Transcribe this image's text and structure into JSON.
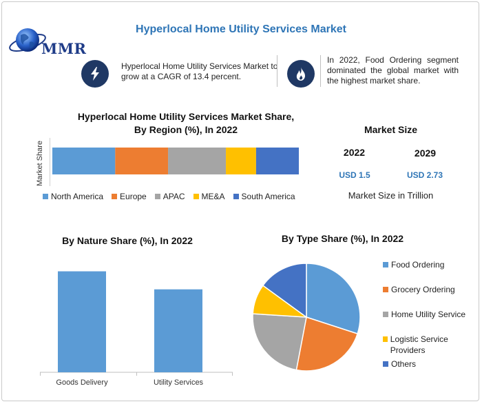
{
  "header": {
    "title": "Hyperlocal Home Utility Services Market",
    "logo_text": "MMR"
  },
  "facts": [
    {
      "icon": "lightning-icon",
      "text": "Hyperlocal Home Utility Services Market to grow at a CAGR of 13.4 percent."
    },
    {
      "icon": "flame-icon",
      "text": "In 2022, Food Ordering segment dominated the global market with the highest market share."
    }
  ],
  "market_size": {
    "title": "Market Size",
    "years": [
      "2022",
      "2029"
    ],
    "values": [
      "USD 1.5",
      "USD 2.73"
    ],
    "note": "Market Size in Trillion"
  },
  "colors": {
    "blue": "#5b9bd5",
    "orange": "#ed7d31",
    "gray": "#a5a5a5",
    "yellow": "#ffc000",
    "darkblue": "#4472c4",
    "title_blue": "#2e75b6",
    "icon_bg": "#1f3864"
  },
  "chart_data": [
    {
      "type": "bar",
      "orientation": "horizontal-stacked",
      "title": "Hyperlocal Home Utility Services Market Share,\nBy Region (%), In 2022",
      "title_lines": [
        "Hyperlocal Home Utility Services Market Share,",
        "By Region (%), In 2022"
      ],
      "ylabel": "Market Share",
      "legend_position": "bottom",
      "series": [
        {
          "name": "North America",
          "values": [
            25
          ],
          "color": "#5b9bd5"
        },
        {
          "name": "Europe",
          "values": [
            21
          ],
          "color": "#ed7d31"
        },
        {
          "name": "APAC",
          "values": [
            23
          ],
          "color": "#a5a5a5"
        },
        {
          "name": "ME&A",
          "values": [
            12
          ],
          "color": "#ffc000"
        },
        {
          "name": "South America",
          "values": [
            17
          ],
          "color": "#4472c4"
        }
      ]
    },
    {
      "type": "bar",
      "title": "By Nature Share (%), In 2022",
      "categories": [
        "Goods Delivery",
        "Utility Services"
      ],
      "values": [
        56,
        46
      ],
      "ylim": [
        0,
        65
      ],
      "grid": false,
      "color": "#5b9bd5"
    },
    {
      "type": "pie",
      "title": "By Type  Share (%), In 2022",
      "legend_position": "right",
      "labels": [
        "Food Ordering",
        "Grocery Ordering",
        "Home Utility Service",
        "Logistic Service Providers",
        "Others"
      ],
      "values": [
        30,
        23,
        23,
        9,
        15
      ],
      "colors": [
        "#5b9bd5",
        "#ed7d31",
        "#a5a5a5",
        "#ffc000",
        "#4472c4"
      ]
    }
  ]
}
